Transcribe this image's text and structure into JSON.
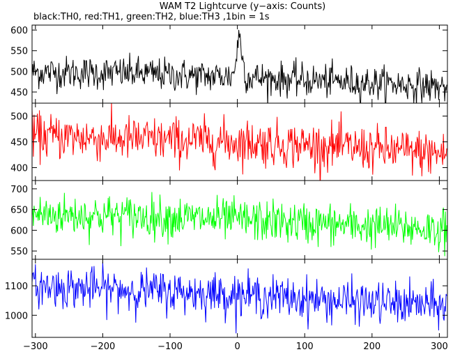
{
  "title": "WAM T2 Lightcurve (y−axis: Counts)",
  "subtitle": "black:TH0, red:TH1, green:TH2, blue:TH3 ,1bin = 1s",
  "chart_data": {
    "type": "line",
    "xlim": [
      -305,
      312
    ],
    "x_ticks": [
      -300,
      -200,
      -100,
      0,
      100,
      200,
      300
    ],
    "x_tick_labels": [
      "−300",
      "−200",
      "−100",
      "0",
      "100",
      "200",
      "300"
    ],
    "bin_seconds": 1,
    "panels": [
      {
        "name": "TH0",
        "color": "#000000",
        "ylim": [
          423,
          612
        ],
        "y_ticks": [
          450,
          500,
          550,
          600
        ],
        "y_tick_labels": [
          "450",
          "500",
          "550",
          "600"
        ],
        "trend": [
          [
            -300,
            498
          ],
          [
            -150,
            495
          ],
          [
            -50,
            488
          ],
          [
            0,
            488
          ],
          [
            50,
            482
          ],
          [
            150,
            475
          ],
          [
            250,
            468
          ],
          [
            310,
            462
          ]
        ],
        "noise_sd": 20,
        "peak": {
          "x": 3,
          "height": 95,
          "width": 4
        }
      },
      {
        "name": "TH1",
        "color": "#ff0000",
        "ylim": [
          375,
          525
        ],
        "y_ticks": [
          400,
          450,
          500
        ],
        "y_tick_labels": [
          "400",
          "450",
          "500"
        ],
        "trend": [
          [
            -300,
            462
          ],
          [
            -150,
            455
          ],
          [
            0,
            450
          ],
          [
            150,
            440
          ],
          [
            300,
            427
          ]
        ],
        "noise_sd": 22
      },
      {
        "name": "TH2",
        "color": "#00ff00",
        "ylim": [
          530,
          720
        ],
        "y_ticks": [
          550,
          600,
          650,
          700
        ],
        "y_tick_labels": [
          "550",
          "600",
          "650",
          "700"
        ],
        "trend": [
          [
            -300,
            638
          ],
          [
            -150,
            634
          ],
          [
            0,
            625
          ],
          [
            150,
            613
          ],
          [
            300,
            603
          ]
        ],
        "noise_sd": 25
      },
      {
        "name": "TH3",
        "color": "#0000ff",
        "ylim": [
          925,
          1190
        ],
        "y_ticks": [
          1000,
          1100
        ],
        "y_tick_labels": [
          "1000",
          "1100"
        ],
        "trend": [
          [
            -300,
            1098
          ],
          [
            -150,
            1085
          ],
          [
            0,
            1070
          ],
          [
            150,
            1048
          ],
          [
            300,
            1032
          ]
        ],
        "noise_sd": 35
      }
    ]
  }
}
